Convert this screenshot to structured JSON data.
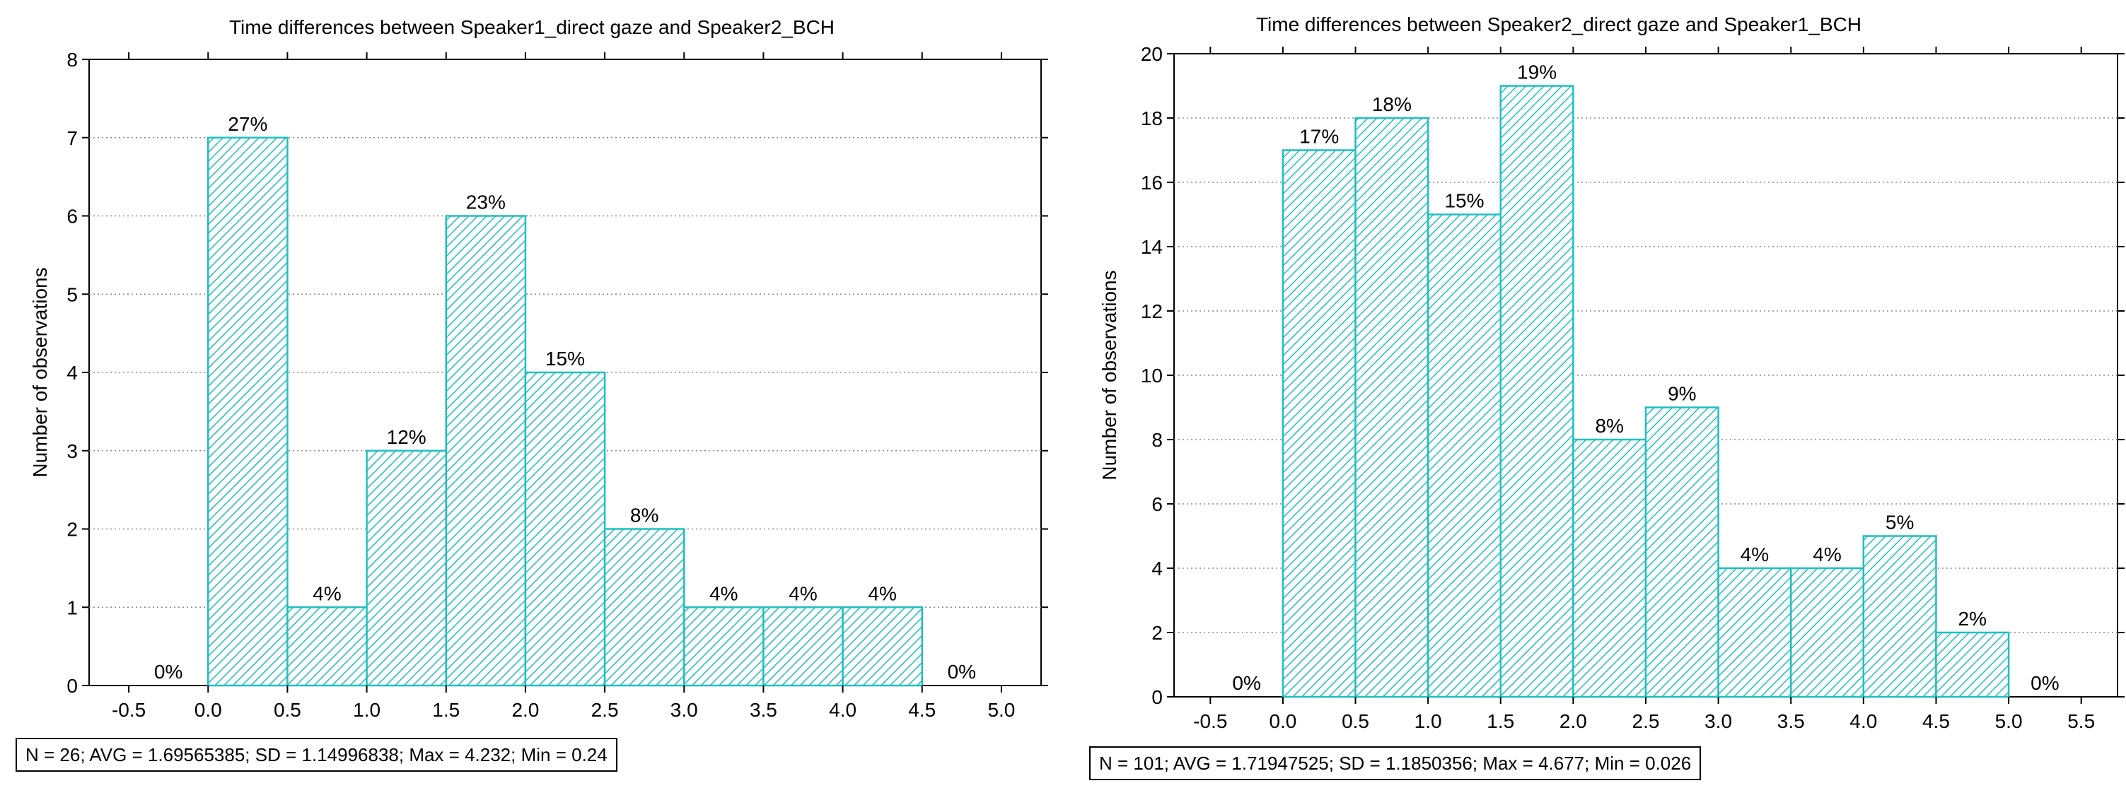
{
  "chart_data": [
    {
      "type": "bar",
      "title": "Time differences between Speaker1_direct gaze and Speaker2_BCH",
      "xlabel": "",
      "ylabel": "Number of observations",
      "xlim": [
        -0.75,
        5.25
      ],
      "ylim": [
        0,
        8
      ],
      "xticks": [
        -0.5,
        0.0,
        0.5,
        1.0,
        1.5,
        2.0,
        2.5,
        3.0,
        3.5,
        4.0,
        4.5,
        5.0
      ],
      "xtick_labels": [
        "-0.5",
        "0.0",
        "0.5",
        "1.0",
        "1.5",
        "2.0",
        "2.5",
        "3.0",
        "3.5",
        "4.0",
        "4.5",
        "5.0"
      ],
      "yticks": [
        0,
        1,
        2,
        3,
        4,
        5,
        6,
        7,
        8
      ],
      "ytick_labels": [
        "0",
        "1",
        "2",
        "3",
        "4",
        "5",
        "6",
        "7",
        "8"
      ],
      "bin_width": 0.5,
      "bin_starts": [
        -0.5,
        0.0,
        0.5,
        1.0,
        1.5,
        2.0,
        2.5,
        3.0,
        3.5,
        4.0,
        4.5
      ],
      "values": [
        0,
        7,
        1,
        3,
        6,
        4,
        2,
        1,
        1,
        1,
        0
      ],
      "labels": [
        "0%",
        "27%",
        "4%",
        "12%",
        "23%",
        "15%",
        "8%",
        "4%",
        "4%",
        "4%",
        "0%"
      ],
      "grid": true,
      "color": "#1fbfbf",
      "stats": "N = 26; AVG = 1.69565385; SD = 1.14996838; Max = 4.232; Min = 0.24"
    },
    {
      "type": "bar",
      "title": "Time differences between Speaker2_direct gaze and Speaker1_BCH",
      "xlabel": "",
      "ylabel": "Number of observations",
      "xlim": [
        -0.75,
        5.75
      ],
      "ylim": [
        0,
        20
      ],
      "xticks": [
        -0.5,
        0.0,
        0.5,
        1.0,
        1.5,
        2.0,
        2.5,
        3.0,
        3.5,
        4.0,
        4.5,
        5.0,
        5.5
      ],
      "xtick_labels": [
        "-0.5",
        "0.0",
        "0.5",
        "1.0",
        "1.5",
        "2.0",
        "2.5",
        "3.0",
        "3.5",
        "4.0",
        "4.5",
        "5.0",
        "5.5"
      ],
      "yticks": [
        0,
        2,
        4,
        6,
        8,
        10,
        12,
        14,
        16,
        18,
        20
      ],
      "ytick_labels": [
        "0",
        "2",
        "4",
        "6",
        "8",
        "10",
        "12",
        "14",
        "16",
        "18",
        "20"
      ],
      "bin_width": 0.5,
      "bin_starts": [
        -0.5,
        0.0,
        0.5,
        1.0,
        1.5,
        2.0,
        2.5,
        3.0,
        3.5,
        4.0,
        4.5,
        5.0
      ],
      "values": [
        0,
        17,
        18,
        15,
        19,
        8,
        9,
        4,
        4,
        5,
        2,
        0
      ],
      "labels": [
        "0%",
        "17%",
        "18%",
        "15%",
        "19%",
        "8%",
        "9%",
        "4%",
        "4%",
        "5%",
        "2%",
        "0%"
      ],
      "grid": true,
      "color": "#1fbfbf",
      "stats": "N = 101; AVG = 1.71947525; SD = 1.1850356; Max = 4.677; Min = 0.026"
    }
  ]
}
